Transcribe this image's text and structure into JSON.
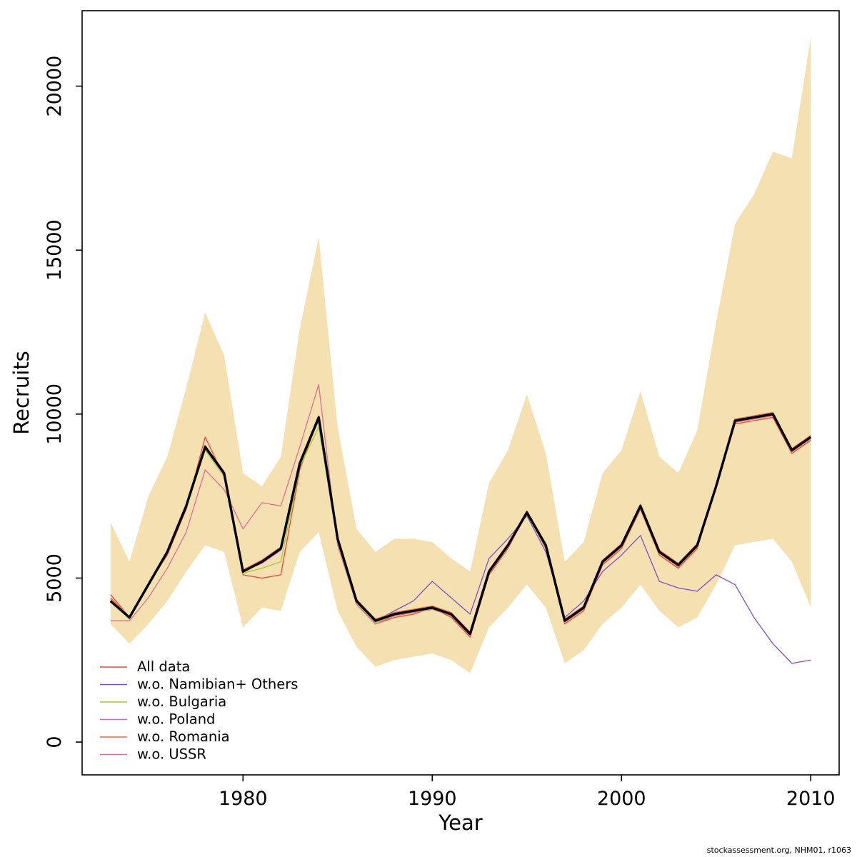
{
  "page": {
    "footer": "stockassessment.org, NHM01, r1063"
  },
  "chart_data": {
    "type": "line",
    "title": "",
    "xlabel": "Year",
    "ylabel": "Recruits",
    "xlim": [
      1971.5,
      2011.5
    ],
    "ylim": [
      -1000,
      22300
    ],
    "x_ticks": [
      1980,
      1990,
      2000,
      2010
    ],
    "y_ticks": [
      0,
      5000,
      10000,
      15000,
      20000
    ],
    "grid": false,
    "legend_position": "bottom-left-inside",
    "x": [
      1973,
      1974,
      1975,
      1976,
      1977,
      1978,
      1979,
      1980,
      1981,
      1982,
      1983,
      1984,
      1985,
      1986,
      1987,
      1988,
      1989,
      1990,
      1991,
      1992,
      1993,
      1994,
      1995,
      1996,
      1997,
      1998,
      1999,
      2000,
      2001,
      2002,
      2003,
      2004,
      2005,
      2006,
      2007,
      2008,
      2009,
      2010
    ],
    "band": {
      "name": "confidence-band",
      "color": "#F5E0B2",
      "lower": [
        3600,
        3000,
        3600,
        4300,
        5200,
        6000,
        5800,
        3500,
        4100,
        4000,
        5800,
        6400,
        4000,
        2900,
        2300,
        2500,
        2600,
        2700,
        2500,
        2100,
        3500,
        4100,
        4800,
        4100,
        2400,
        2800,
        3600,
        4100,
        4800,
        4000,
        3500,
        3800,
        4800,
        6000,
        6100,
        6200,
        5500,
        4100
      ],
      "upper": [
        6700,
        5500,
        7500,
        8700,
        10800,
        13100,
        11800,
        8200,
        7800,
        8700,
        12600,
        15400,
        9600,
        6500,
        5800,
        6200,
        6200,
        6100,
        5600,
        5200,
        7900,
        8900,
        10600,
        8800,
        5500,
        6100,
        8200,
        8900,
        10700,
        8700,
        8200,
        9500,
        12800,
        15800,
        16700,
        18000,
        17800,
        21500
      ]
    },
    "base_case": {
      "name": "base-case",
      "color": "#000000",
      "width": 3.4,
      "values": [
        4300,
        3800,
        4800,
        5800,
        7200,
        9000,
        8200,
        5200,
        5500,
        5900,
        8500,
        9900,
        6200,
        4300,
        3700,
        3900,
        4000,
        4100,
        3900,
        3300,
        5200,
        6000,
        7000,
        6000,
        3700,
        4100,
        5500,
        6000,
        7200,
        5800,
        5400,
        6000,
        7800,
        9800,
        9900,
        10000,
        8900,
        9300
      ]
    },
    "series": [
      {
        "name": "All data",
        "slug": "all-data",
        "color": "#e8473b",
        "width": 1.3,
        "values": [
          4500,
          3800,
          4800,
          5700,
          7100,
          9300,
          8100,
          5100,
          5000,
          5100,
          8300,
          9900,
          6100,
          4200,
          3600,
          3800,
          3900,
          4100,
          3800,
          3200,
          5100,
          5900,
          7000,
          5900,
          3600,
          4000,
          5400,
          5900,
          7100,
          5700,
          5300,
          5900,
          7800,
          9700,
          9800,
          9900,
          8800,
          9200
        ]
      },
      {
        "name": "w.o. Namibian+ Others",
        "slug": "wo-namibian-others",
        "color": "#7d4fc3",
        "width": 1.3,
        "values": [
          4300,
          3800,
          4800,
          5800,
          7200,
          9000,
          8200,
          5200,
          5500,
          5900,
          8500,
          9800,
          6200,
          4300,
          3700,
          4000,
          4300,
          4900,
          4400,
          3900,
          5600,
          6200,
          6900,
          5800,
          3800,
          4300,
          5200,
          5700,
          6300,
          4900,
          4700,
          4600,
          5100,
          4800,
          3800,
          3000,
          2400,
          2500
        ]
      },
      {
        "name": "w.o. Bulgaria",
        "slug": "wo-bulgaria",
        "color": "#9ACD32",
        "width": 1.3,
        "values": [
          4300,
          3750,
          4750,
          5750,
          7150,
          8900,
          8100,
          5150,
          5300,
          5500,
          8400,
          9600,
          6100,
          4250,
          3650,
          3850,
          3950,
          4050,
          3850,
          3250,
          5150,
          5950,
          6950,
          5950,
          3650,
          4050,
          5450,
          5950,
          7150,
          5750,
          5350,
          5950,
          7750,
          9750,
          9850,
          9950,
          8850,
          9250
        ]
      },
      {
        "name": "w.o. Poland",
        "slug": "wo-poland",
        "color": "#e653e0",
        "width": 1.3,
        "values": [
          4350,
          3800,
          4800,
          5800,
          7200,
          8950,
          8150,
          5200,
          5450,
          5850,
          8450,
          9850,
          6150,
          4300,
          3700,
          3900,
          4000,
          4100,
          3900,
          3300,
          5200,
          6000,
          7000,
          6000,
          3700,
          4100,
          5500,
          6000,
          7200,
          5800,
          5400,
          6000,
          7800,
          9800,
          9900,
          10000,
          8900,
          9300
        ]
      },
      {
        "name": "w.o. Romania",
        "slug": "wo-romania",
        "color": "#f2663c",
        "width": 1.3,
        "values": [
          4400,
          3820,
          4820,
          5820,
          7220,
          9050,
          8250,
          5250,
          5550,
          5950,
          8550,
          9950,
          6250,
          4350,
          3750,
          3950,
          4050,
          4150,
          3950,
          3350,
          5250,
          6050,
          7050,
          6050,
          3750,
          4150,
          5550,
          6050,
          7250,
          5850,
          5450,
          6050,
          7850,
          9850,
          9950,
          10050,
          8950,
          9350
        ]
      },
      {
        "name": "w.o. USSR",
        "slug": "wo-ussr",
        "color": "#DB7093",
        "width": 1.3,
        "values": [
          3700,
          3700,
          4400,
          5300,
          6400,
          8300,
          7700,
          6500,
          7300,
          7200,
          9000,
          10900,
          6000,
          4200,
          3600,
          3850,
          3950,
          4050,
          3850,
          3250,
          5150,
          5950,
          6950,
          5950,
          3650,
          4050,
          5450,
          5950,
          7150,
          5750,
          5350,
          5950,
          7750,
          9750,
          9850,
          9950,
          8850,
          9250
        ]
      }
    ]
  }
}
